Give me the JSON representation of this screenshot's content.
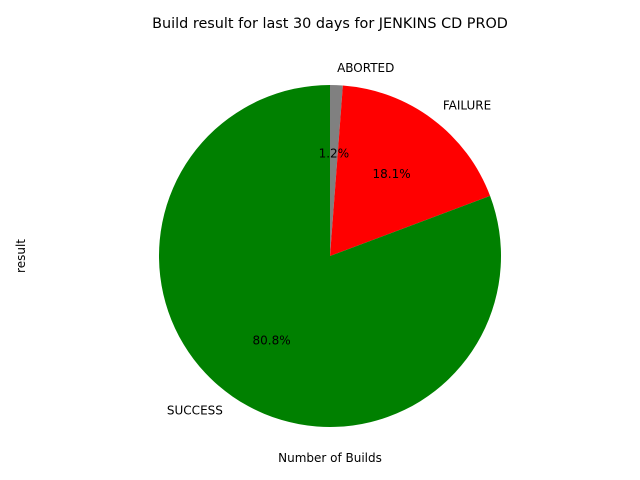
{
  "chart_data": {
    "type": "pie",
    "title": "Build result for last 30 days  for JENKINS CD PROD",
    "xlabel": "Number of Builds",
    "ylabel": "result",
    "slices": [
      {
        "label": "ABORTED",
        "percent": 1.2,
        "percent_label": "1.2%",
        "color": "#808080"
      },
      {
        "label": "FAILURE",
        "percent": 18.1,
        "percent_label": "18.1%",
        "color": "#ff0000"
      },
      {
        "label": "SUCCESS",
        "percent": 80.8,
        "percent_label": "80.8%",
        "color": "#008000"
      }
    ],
    "start_angle_deg": 90,
    "direction": "clockwise",
    "legend": "none",
    "grid": false
  }
}
